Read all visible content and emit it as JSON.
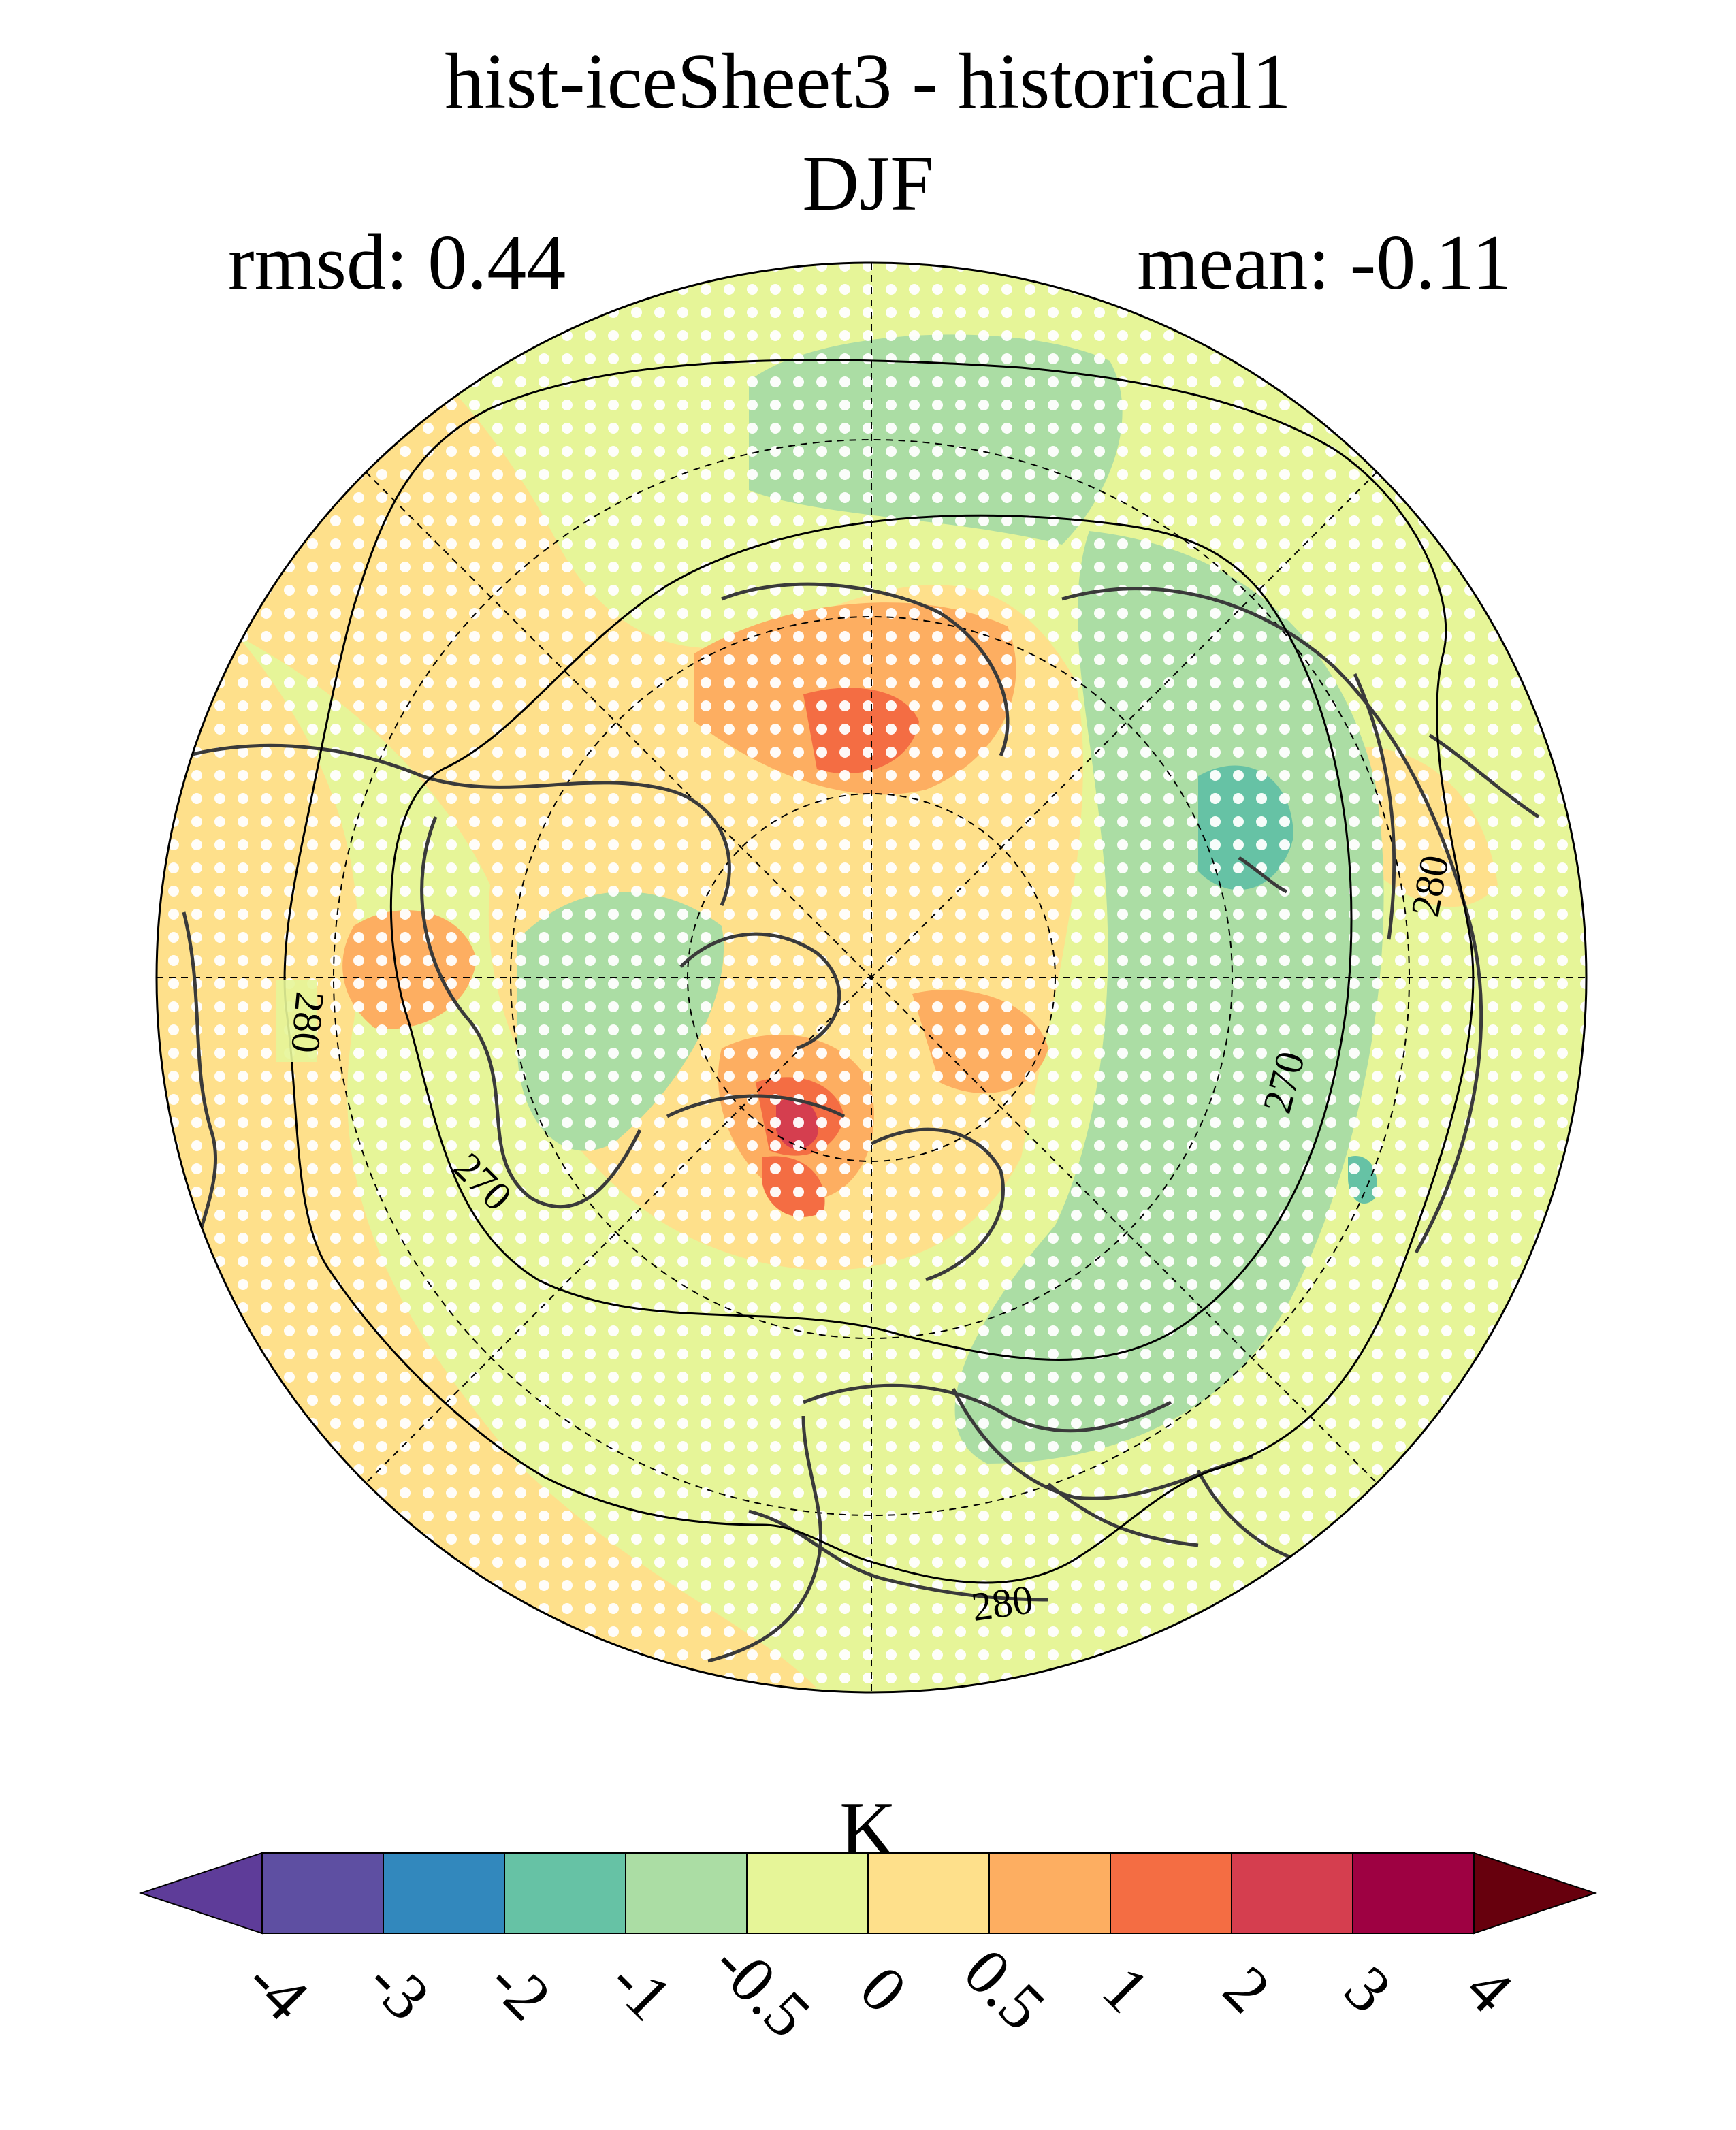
{
  "title": "hist-iceSheet3 - historical1",
  "season": "DJF",
  "stats": {
    "rmsd": "rmsd: 0.44",
    "mean": "mean: -0.11"
  },
  "map": {
    "projection": "north-polar-stereographic",
    "contour_labels": [
      "280",
      "270",
      "270",
      "280",
      "280"
    ],
    "stippling": "white-dots",
    "graticule": "dashed"
  },
  "colorbar": {
    "unit": "K",
    "ticks": [
      "-4",
      "-3",
      "-2",
      "-1",
      "-0.5",
      "0",
      "0.5",
      "1",
      "2",
      "3",
      "4"
    ],
    "colors": [
      "#5e3c99",
      "#5e4fa2",
      "#3288bd",
      "#66c2a5",
      "#abdda4",
      "#e6f598",
      "#fee08b",
      "#fdae61",
      "#f46d43",
      "#d53e4f",
      "#9e0142",
      "#67000d"
    ]
  }
}
